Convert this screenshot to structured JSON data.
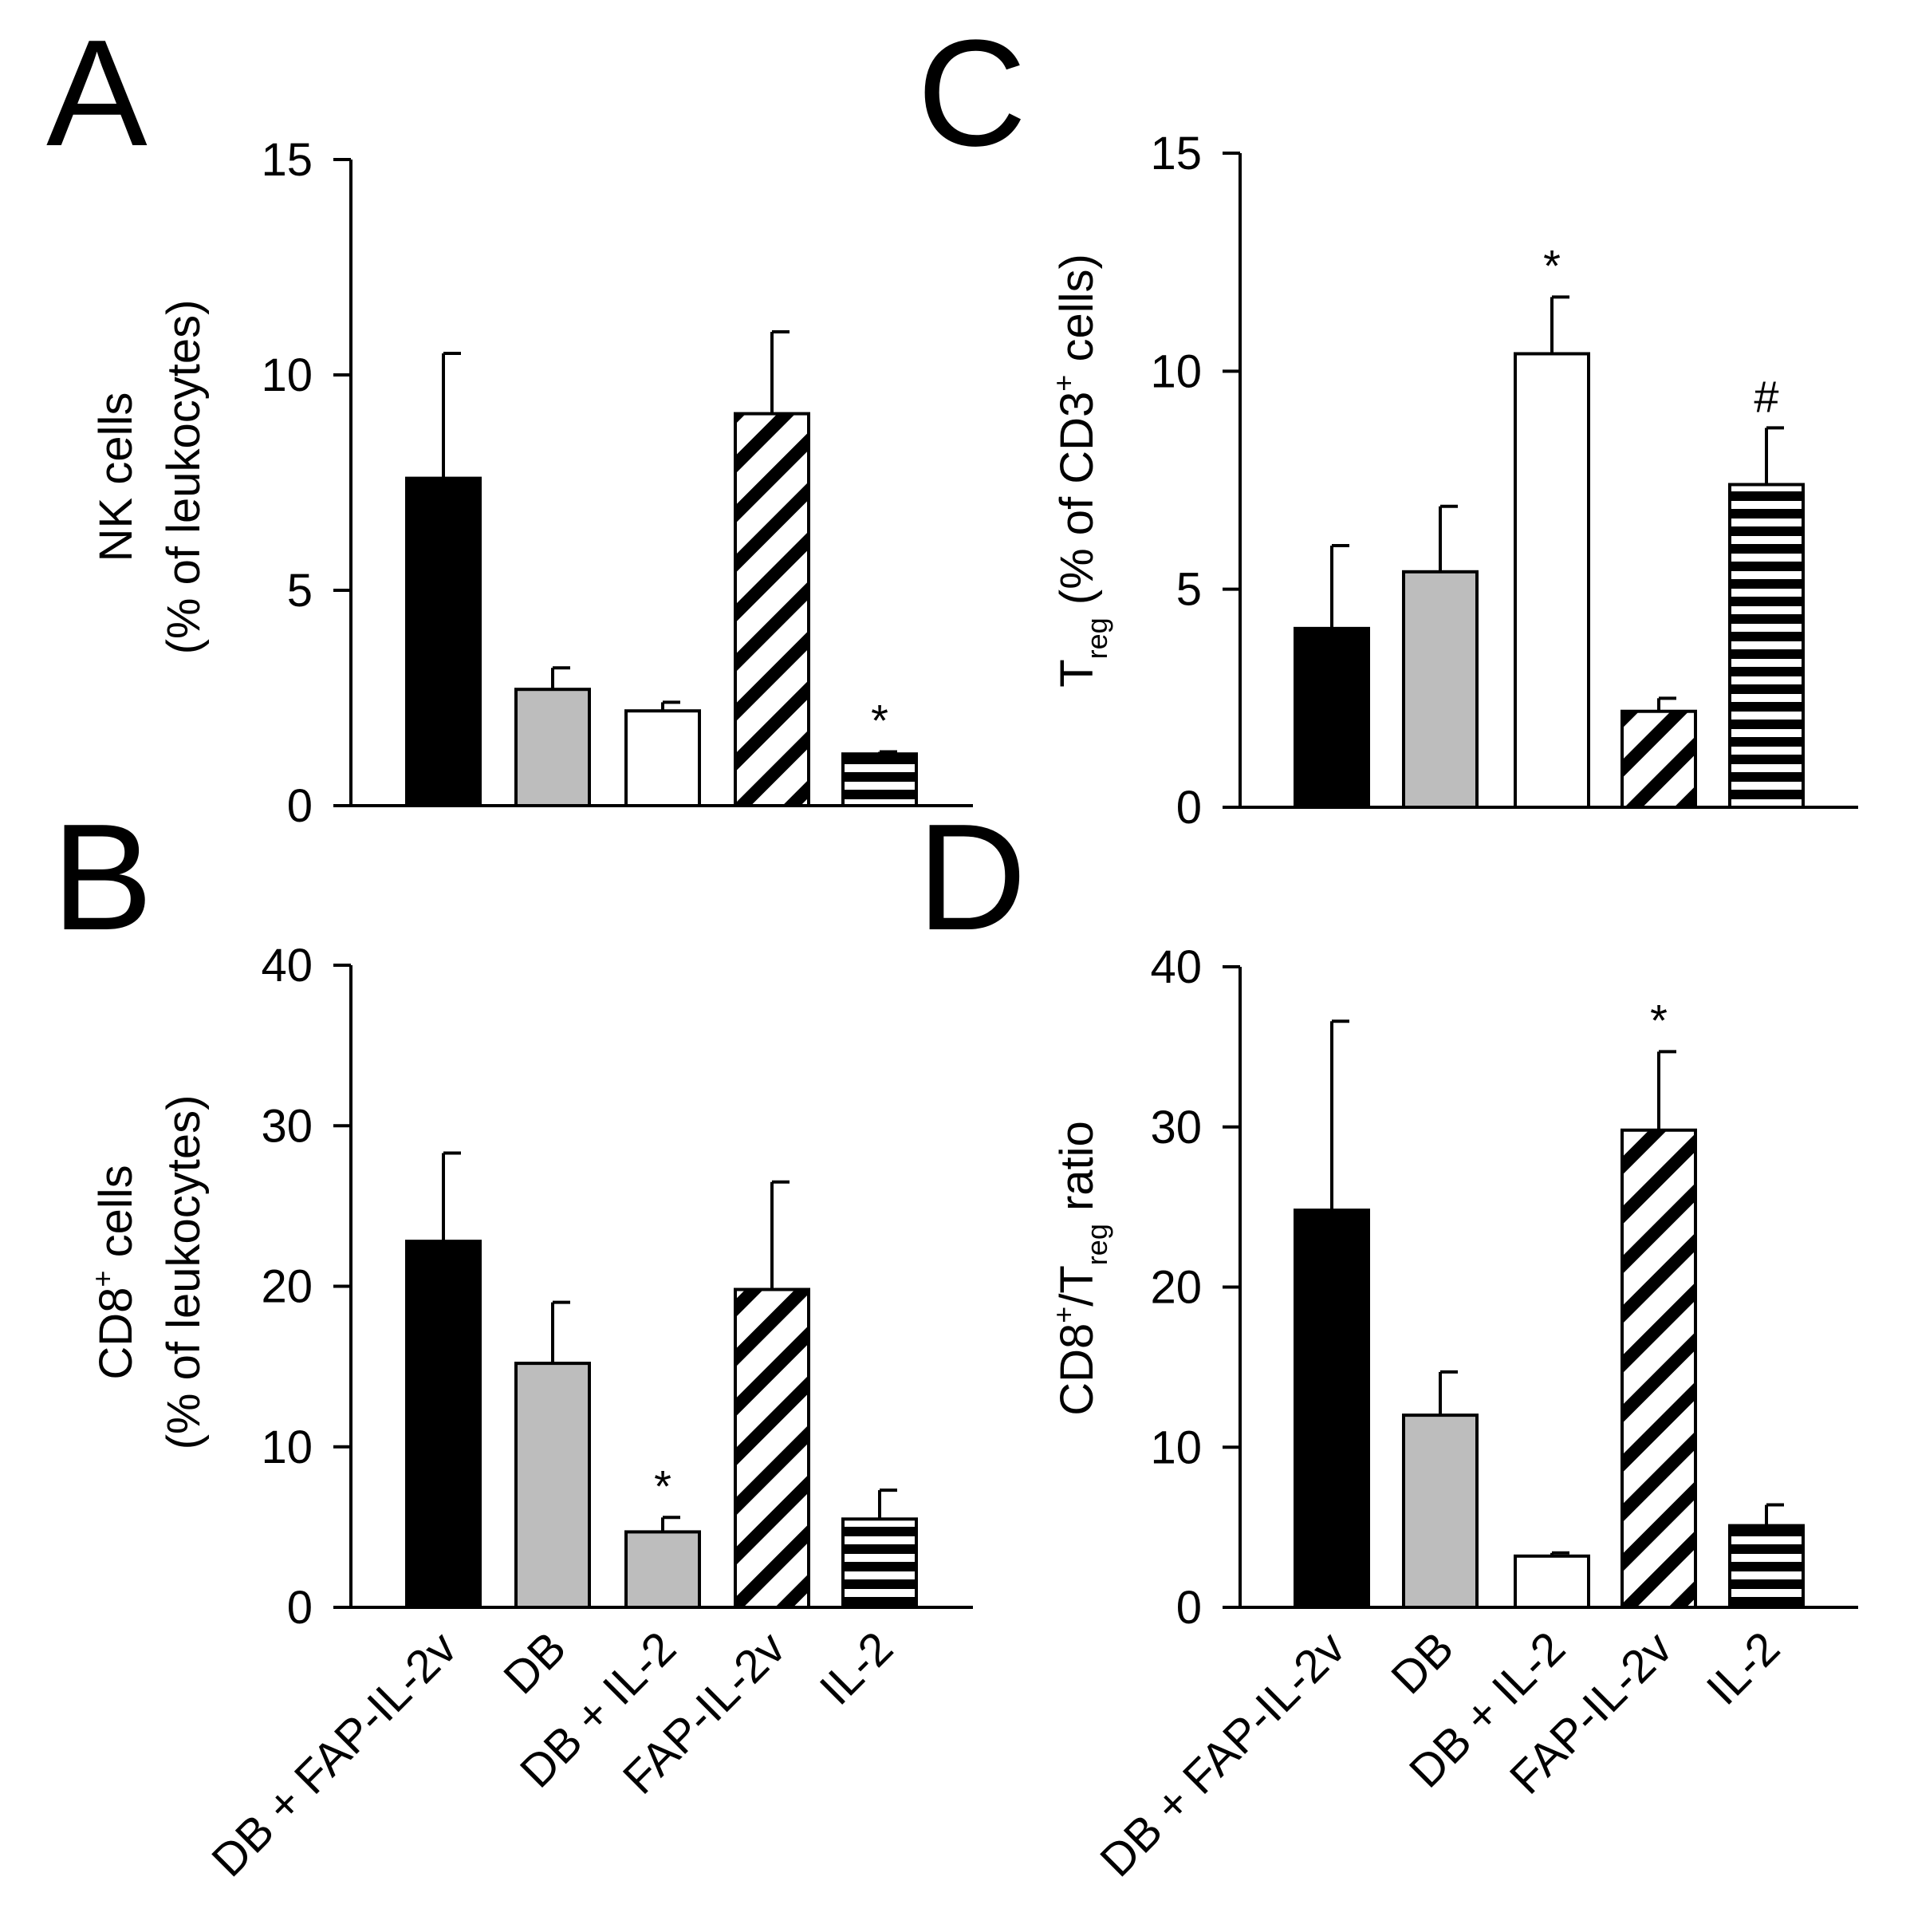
{
  "categories": [
    "DB + FAP-IL-2v",
    "DB",
    "DB + IL-2",
    "FAP-IL-2v",
    "IL-2"
  ],
  "colors": {
    "black": "#000000",
    "gray": "#bdbdbd",
    "white": "#ffffff",
    "axis": "#000000"
  },
  "chart_data": [
    {
      "id": "A",
      "type": "bar",
      "letter": "A",
      "ylabel_line1": "NK cells",
      "ylabel_line2": "(% of leukocytes)",
      "ylim": [
        0,
        15
      ],
      "yticks": [
        "0",
        "5",
        "10",
        "15"
      ],
      "ytick_values": [
        0,
        5,
        10,
        15
      ],
      "values": [
        7.6,
        2.7,
        2.2,
        9.1,
        1.2
      ],
      "errors": [
        2.9,
        0.5,
        0.2,
        1.9,
        0.05
      ],
      "fills": [
        "black",
        "gray",
        "white",
        "diag",
        "hstripe"
      ],
      "sig": [
        "",
        "",
        "",
        "",
        "*"
      ]
    },
    {
      "id": "C",
      "type": "bar",
      "letter": "C",
      "ylabel_main": "T",
      "ylabel_sub": "reg",
      "ylabel_rest": " (% of CD3",
      "ylabel_sup": "+",
      "ylabel_end": "  cells)",
      "ylim": [
        0,
        15
      ],
      "yticks": [
        "0",
        "5",
        "10",
        "15"
      ],
      "ytick_values": [
        0,
        5,
        10,
        15
      ],
      "values": [
        4.1,
        5.4,
        10.4,
        2.2,
        7.4
      ],
      "errors": [
        1.9,
        1.5,
        1.3,
        0.3,
        1.3
      ],
      "fills": [
        "black",
        "gray",
        "white",
        "diag",
        "hstripe"
      ],
      "sig": [
        "",
        "",
        "*",
        "",
        "#"
      ]
    },
    {
      "id": "B",
      "type": "bar",
      "letter": "B",
      "ylabel_line1_main": "CD8",
      "ylabel_line1_sup": "+",
      "ylabel_line1_end": " cells",
      "ylabel_line2": "(% of leukocytes)",
      "ylim": [
        0,
        40
      ],
      "yticks": [
        "0",
        "10",
        "20",
        "30",
        "40"
      ],
      "ytick_values": [
        0,
        10,
        20,
        30,
        40
      ],
      "values": [
        22.8,
        15.2,
        4.7,
        19.8,
        5.5
      ],
      "errors": [
        5.5,
        3.8,
        0.9,
        6.7,
        1.8
      ],
      "fills": [
        "black",
        "gray",
        "gray",
        "diag",
        "hstripe"
      ],
      "sig": [
        "",
        "",
        "*",
        "",
        ""
      ]
    },
    {
      "id": "D",
      "type": "bar",
      "letter": "D",
      "ylabel_a": "CD8",
      "ylabel_sup": "+",
      "ylabel_b": "/T",
      "ylabel_sub": "reg",
      "ylabel_c": " ratio",
      "ylim": [
        0,
        40
      ],
      "yticks": [
        "0",
        "10",
        "20",
        "30",
        "40"
      ],
      "ytick_values": [
        0,
        10,
        20,
        30,
        40
      ],
      "values": [
        24.8,
        12.0,
        3.2,
        29.8,
        5.1
      ],
      "errors": [
        11.8,
        2.7,
        0.2,
        4.9,
        1.3
      ],
      "fills": [
        "black",
        "gray",
        "white",
        "diag",
        "hstripe"
      ],
      "sig": [
        "",
        "",
        "",
        "*",
        ""
      ]
    }
  ]
}
